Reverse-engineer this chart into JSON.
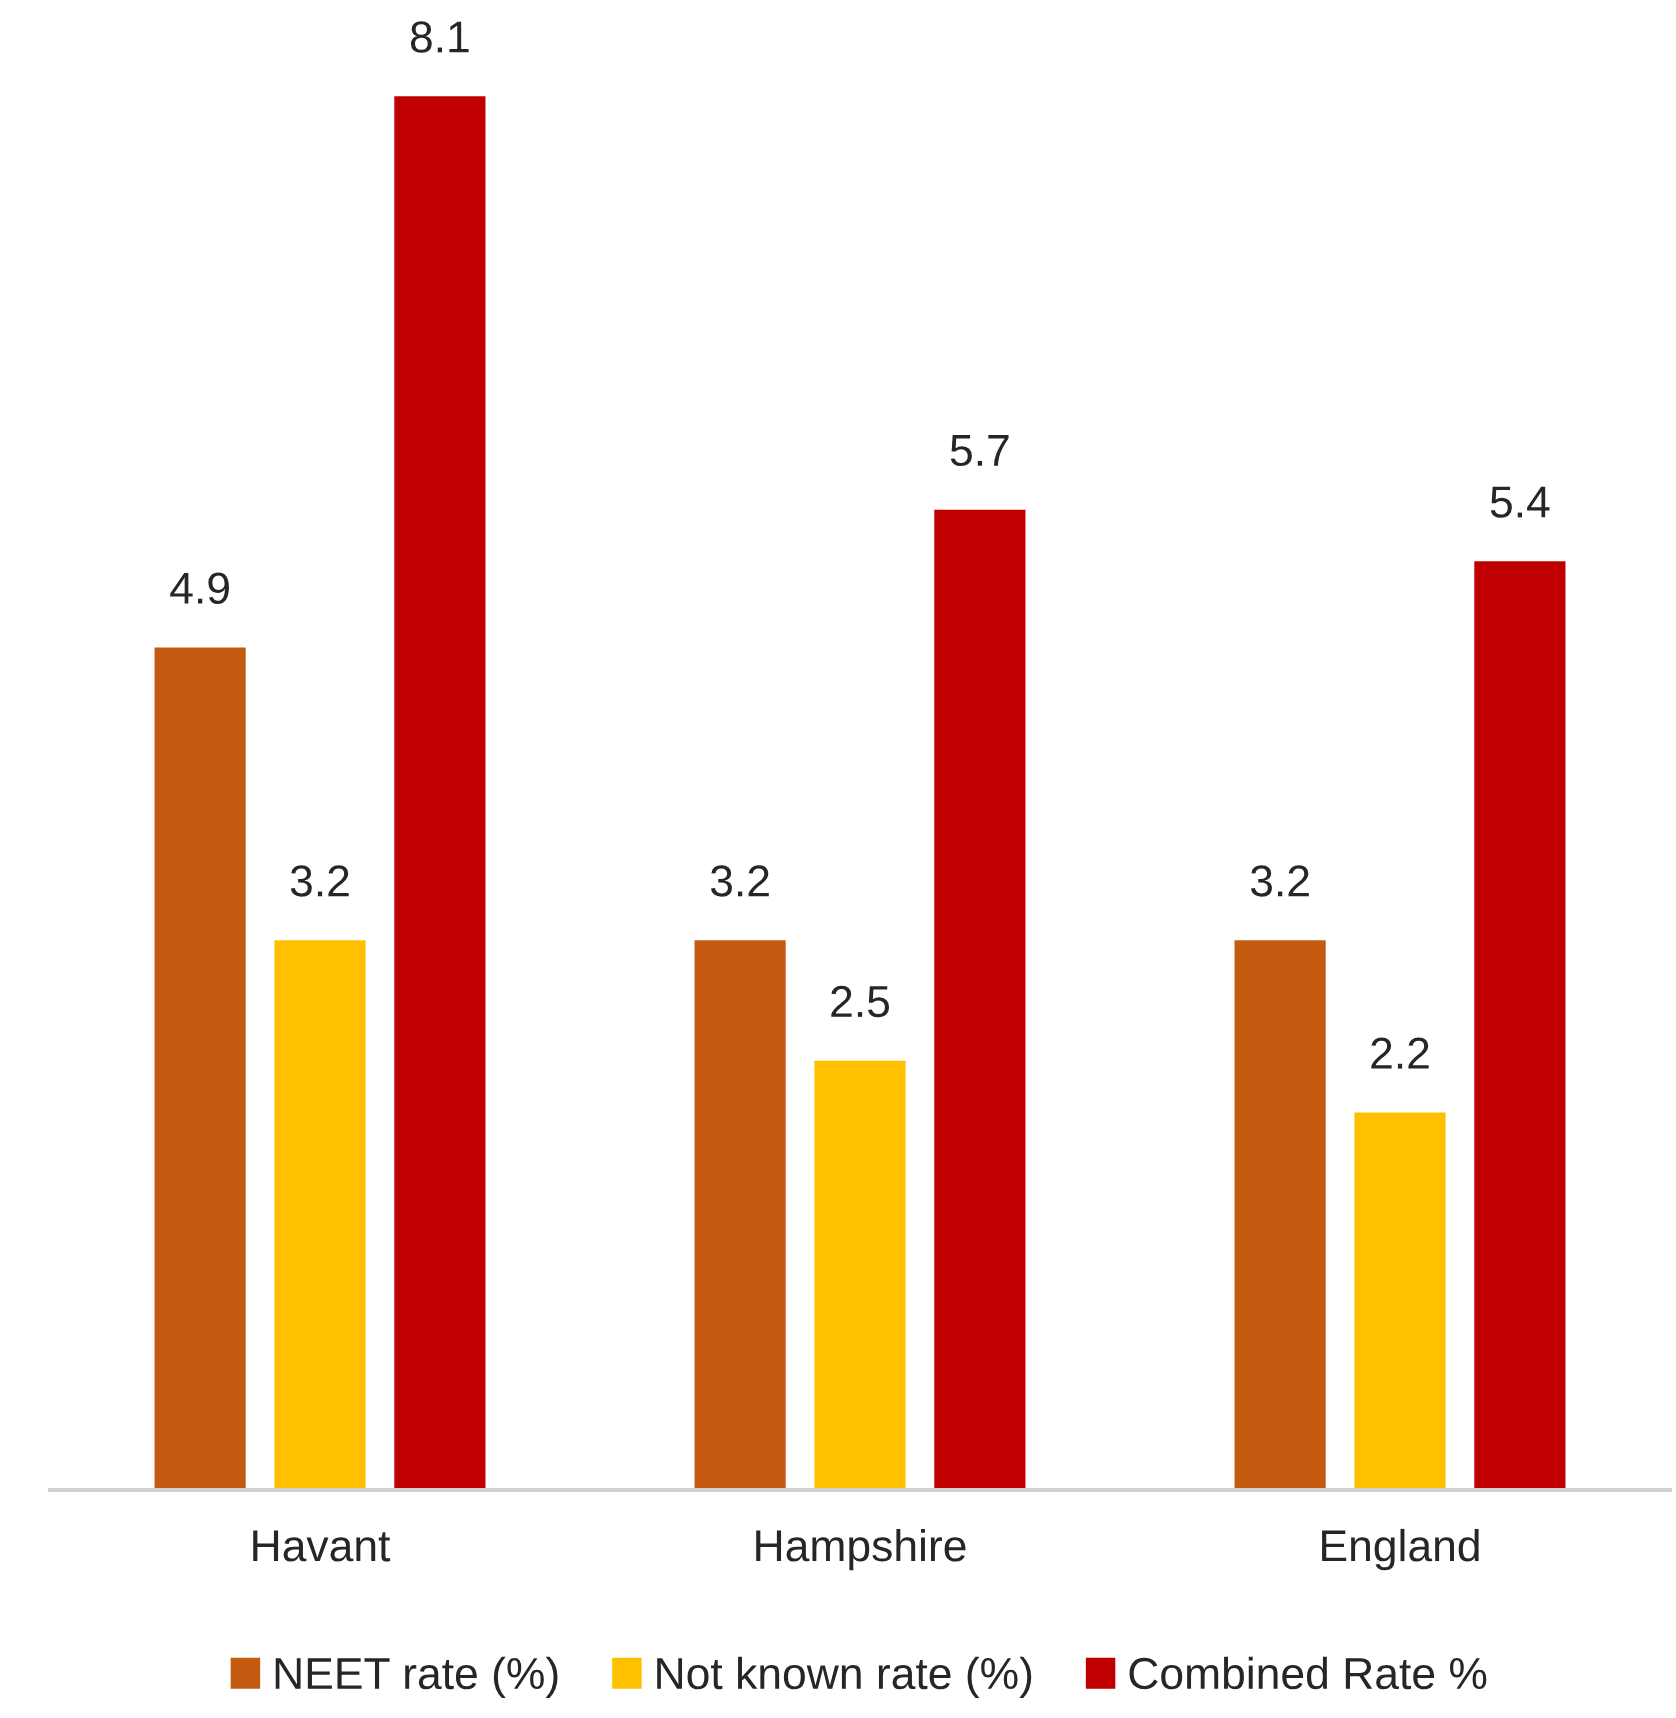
{
  "chart_data": {
    "type": "bar",
    "categories": [
      "Havant",
      "Hampshire",
      "England"
    ],
    "series": [
      {
        "name": "NEET rate (%)",
        "color": "#c55a11",
        "values": [
          4.9,
          3.2,
          3.2
        ]
      },
      {
        "name": "Not known rate (%)",
        "color": "#ffc000",
        "values": [
          3.2,
          2.5,
          2.2
        ]
      },
      {
        "name": "Combined Rate %",
        "color": "#c00000",
        "values": [
          8.1,
          5.7,
          5.4
        ]
      }
    ],
    "data_labels": true,
    "grid": false,
    "legend": "bottom",
    "tick_labels": "x"
  }
}
